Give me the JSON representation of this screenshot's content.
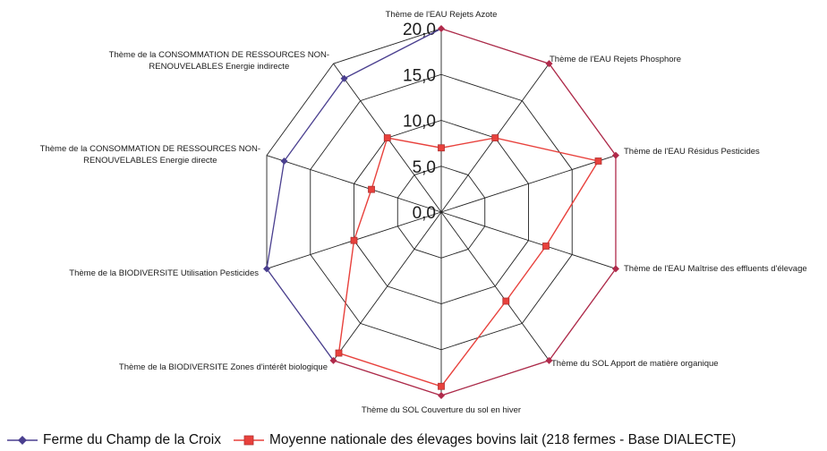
{
  "chart_data": {
    "type": "radar",
    "title": "",
    "categories": [
      "Thème de l'EAU  Rejets Azote",
      "Thème de l'EAU  Rejets Phosphore",
      "Thème de l'EAU  Résidus Pesticides",
      "Thème de l'EAU  Maîtrise des effluents d'élevage",
      "Thème du SOL Apport de matière organique",
      "Thème du SOL Couverture du sol en hiver",
      "Thème de la BIODIVERSITE Zones d'intérêt biologique",
      "Thème de la BIODIVERSITE Utilisation Pesticides",
      "Thème de la CONSOMMATION DE RESSOURCES NON-RENOUVELABLES Energie directe",
      "Thème de la CONSOMMATION DE RESSOURCES NON-RENOUVELABLES Energie indirecte"
    ],
    "ticks": [
      "0,0",
      "5,0",
      "10,0",
      "15,0",
      "20,0"
    ],
    "rlim": [
      0,
      20
    ],
    "series": [
      {
        "name": "Ferme du Champ de la Croix",
        "values": [
          20,
          20,
          20,
          20,
          20,
          20,
          20,
          20,
          18,
          18
        ],
        "line_color": "#b02a4a",
        "secondary_color": "#4a3f8f",
        "marker": "diamond"
      },
      {
        "name": "Moyenne nationale des élevages bovins lait (218 fermes - Base DIALECTE)",
        "values": [
          7,
          10,
          18,
          12,
          12,
          19,
          19,
          10,
          8,
          10
        ],
        "line_color": "#e8413c",
        "marker": "square"
      }
    ]
  }
}
